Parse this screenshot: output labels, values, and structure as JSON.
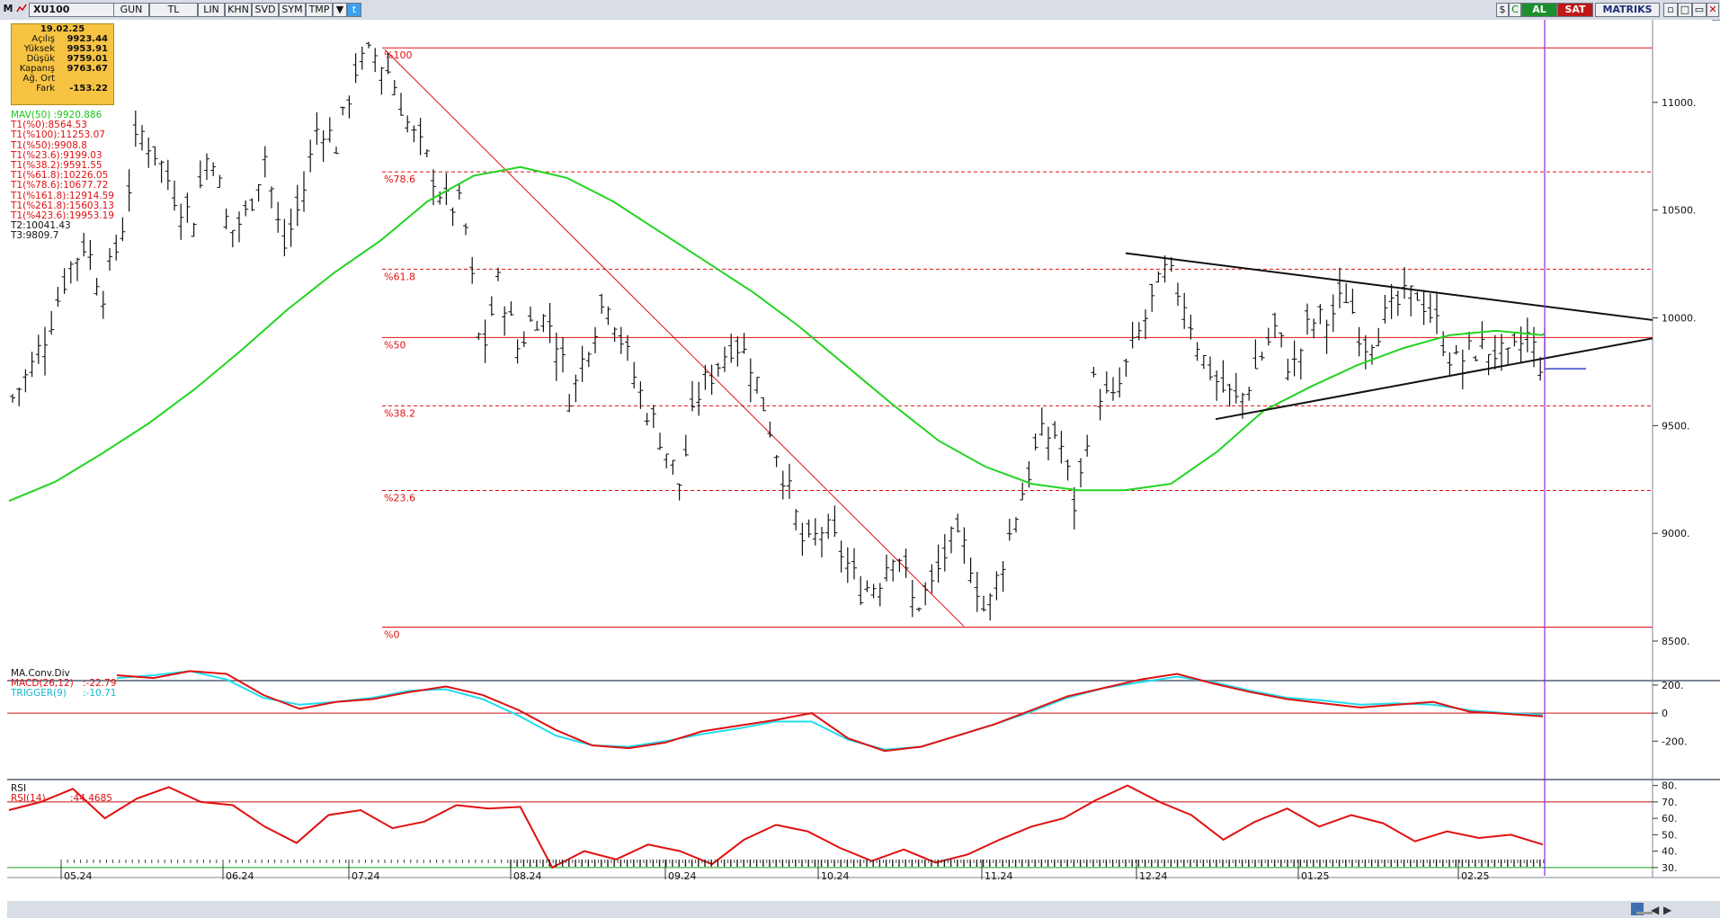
{
  "toolbar": {
    "m_label": "M",
    "symbol": "XU100",
    "buttons": [
      "GUN",
      "TL",
      "LIN",
      "KHN",
      "SVD",
      "SYM",
      "TMP"
    ],
    "al_label": "AL",
    "sat_label": "SAT",
    "brand": "MATRIKS"
  },
  "info": {
    "date": "19.02.25",
    "rows": [
      {
        "label": "Açılış",
        "value": "9923.44"
      },
      {
        "label": "Yüksek",
        "value": "9953.91"
      },
      {
        "label": "Düşük",
        "value": "9759.01"
      },
      {
        "label": "Kapanış",
        "value": "9763.67"
      },
      {
        "label": "Ağ. Ort",
        "value": ""
      },
      {
        "label": "Fark",
        "value": "-153.22"
      }
    ]
  },
  "legend": [
    {
      "text": "MAV(50)      :9920.886",
      "color": "#18c818"
    },
    {
      "text": "T1(%0):8564.53",
      "color": "#e01010"
    },
    {
      "text": "T1(%100):11253.07",
      "color": "#e01010"
    },
    {
      "text": "T1(%50):9908.8",
      "color": "#e01010"
    },
    {
      "text": "T1(%23.6):9199.03",
      "color": "#e01010"
    },
    {
      "text": "T1(%38.2):9591.55",
      "color": "#e01010"
    },
    {
      "text": "T1(%61.8):10226.05",
      "color": "#e01010"
    },
    {
      "text": "T1(%78.6):10677.72",
      "color": "#e01010"
    },
    {
      "text": "T1(%161.8):12914.59",
      "color": "#e01010"
    },
    {
      "text": "T1(%261.8):15603.13",
      "color": "#e01010"
    },
    {
      "text": "T1(%423.6):19953.19",
      "color": "#e01010"
    },
    {
      "text": "T2:10041.43",
      "color": "#111111"
    },
    {
      "text": "T3:9809.7",
      "color": "#111111"
    }
  ],
  "fib_levels": [
    {
      "label": "%100",
      "value": 11253.07,
      "style": "solid"
    },
    {
      "label": "%78.6",
      "value": 10677.72,
      "style": "dashed"
    },
    {
      "label": "%61.8",
      "value": 10226.05,
      "style": "dashed"
    },
    {
      "label": "%50",
      "value": 9908.8,
      "style": "solid"
    },
    {
      "label": "%38.2",
      "value": 9591.55,
      "style": "dashed"
    },
    {
      "label": "%23.6",
      "value": 9199.03,
      "style": "dashed"
    },
    {
      "label": "%0",
      "value": 8564.53,
      "style": "solid"
    }
  ],
  "price_axis": [
    "11000.",
    "10500.",
    "10000.",
    "9500.",
    "9000.",
    "8500."
  ],
  "macd_panel": {
    "title": "MA.Conv.Div",
    "macd_label": "MACD(26,12)",
    "macd_value": ":-22.79",
    "trigger_label": "TRIGGER(9)",
    "trigger_value": ":-10.71",
    "axis": [
      "200.",
      "0",
      "-200."
    ]
  },
  "rsi_panel": {
    "title": "RSI",
    "rsi_label": "RSI(14)",
    "rsi_value": ":44.4685",
    "axis": [
      "80.",
      "70.",
      "60.",
      "50.",
      "40.",
      "30."
    ]
  },
  "time_axis": [
    "05.24",
    "06.24",
    "07.24",
    "08.24",
    "09.24",
    "10.24",
    "11.24",
    "12.24",
    "01.25",
    "02.25"
  ],
  "colors": {
    "ma": "#22d422",
    "fib": "#e01010",
    "macd": "#e01010",
    "trigger": "#22ddee",
    "rsi": "#e01010",
    "trend": "#111111",
    "cursor": "#8a2be2"
  },
  "chart_data": {
    "type": "ohlc",
    "x_dates": [
      "05.24",
      "06.24",
      "07.24",
      "08.24",
      "09.24",
      "10.24",
      "11.24",
      "12.24",
      "01.25",
      "02.25"
    ],
    "y_range": [
      8450,
      11350
    ],
    "last_bar": {
      "date": "19.02.25",
      "open": 9923.44,
      "high": 9953.91,
      "low": 9759.01,
      "close": 9763.67
    },
    "price_path": [
      9630,
      9760,
      9960,
      10210,
      10350,
      10120,
      10380,
      10880,
      10760,
      10570,
      10460,
      10820,
      10390,
      10480,
      10760,
      10310,
      10540,
      10920,
      10800,
      11150,
      11230,
      11130,
      10880,
      10730,
      10530,
      10510,
      9810,
      10180,
      9860,
      10020,
      9960,
      9620,
      9910,
      10110,
      9840,
      9610,
      9440,
      9230,
      9640,
      9770,
      9900,
      9790,
      9500,
      9210,
      8910,
      9030,
      8910,
      8740,
      8770,
      8960,
      8660,
      8750,
      8960,
      8920,
      8610,
      8900,
      9190,
      9440,
      9470,
      9100,
      9700,
      9590,
      9820,
      10030,
      10220,
      10080,
      9820,
      9680,
      9600,
      9770,
      9950,
      9750,
      9980,
      9990,
      10110,
      9880,
      9980,
      10070,
      10120,
      9970,
      9780,
      9850,
      9860,
      9790,
      9920,
      9760
    ],
    "ma_series_points": [
      9150,
      9240,
      9370,
      9510,
      9670,
      9850,
      10040,
      10210,
      10360,
      10540,
      10660,
      10700,
      10650,
      10540,
      10400,
      10260,
      10120,
      9960,
      9780,
      9600,
      9430,
      9310,
      9230,
      9200,
      9200,
      9230,
      9380,
      9570,
      9680,
      9780,
      9860,
      9920,
      9940,
      9920
    ],
    "macd_points": [
      270,
      250,
      300,
      280,
      130,
      30,
      80,
      100,
      150,
      190,
      130,
      20,
      -120,
      -230,
      -250,
      -210,
      -130,
      -90,
      -50,
      0,
      -180,
      -270,
      -240,
      -160,
      -80,
      20,
      120,
      180,
      240,
      280,
      210,
      150,
      100,
      70,
      40,
      60,
      80,
      10,
      -5,
      -23
    ],
    "trigger_points": [
      250,
      270,
      300,
      240,
      110,
      60,
      80,
      110,
      160,
      170,
      100,
      -20,
      -160,
      -230,
      -240,
      -200,
      -150,
      -110,
      -60,
      -60,
      -190,
      -260,
      -240,
      -160,
      -80,
      10,
      110,
      180,
      220,
      260,
      220,
      160,
      110,
      90,
      60,
      70,
      60,
      20,
      0,
      -11
    ],
    "rsi_points": [
      65,
      70,
      78,
      60,
      72,
      79,
      70,
      68,
      55,
      45,
      62,
      65,
      54,
      58,
      68,
      66,
      67,
      30,
      40,
      35,
      44,
      40,
      32,
      47,
      56,
      52,
      42,
      34,
      41,
      33,
      38,
      47,
      55,
      60,
      71,
      80,
      70,
      62,
      47,
      58,
      66,
      55,
      62,
      57,
      46,
      52,
      48,
      50,
      44
    ],
    "fib_values": [
      11253.07,
      10677.72,
      10226.05,
      9908.8,
      9591.55,
      9199.03,
      8564.53
    ],
    "trend_upper": [
      {
        "x": "12.24",
        "y": 10300
      },
      {
        "x": "02.25+",
        "y": 9990
      }
    ],
    "trend_lower": [
      {
        "x": "12.24+",
        "y": 9530
      },
      {
        "x": "02.25+",
        "y": 9900
      }
    ]
  }
}
